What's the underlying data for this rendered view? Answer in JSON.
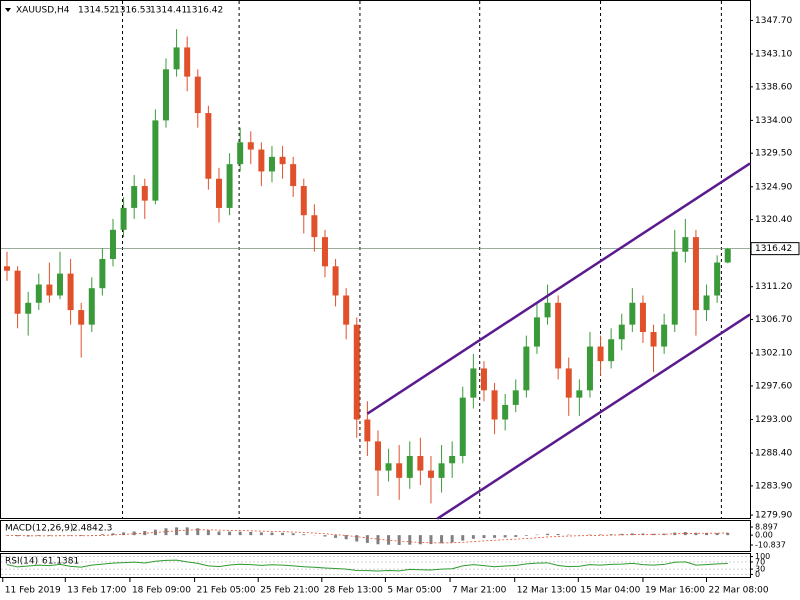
{
  "chart_data": [
    {
      "type": "candlestick",
      "title": "XAUUSD,H4",
      "open": [
        1314,
        1313.4,
        1307.5,
        1309,
        1311.5,
        1310,
        1313,
        1308,
        1306,
        1311,
        1315,
        1319,
        1322,
        1325,
        1323,
        1334,
        1341,
        1344,
        1340,
        1335,
        1326,
        1322,
        1328,
        1331,
        1330,
        1327,
        1329,
        1328,
        1325,
        1321,
        1318,
        1314,
        1310,
        1306,
        1293,
        1290,
        1286,
        1287,
        1285,
        1288,
        1286,
        1285,
        1287,
        1288,
        1296,
        1300,
        1297,
        1293,
        1295,
        1297,
        1303,
        1307,
        1309,
        1300,
        1296,
        1297,
        1303,
        1301,
        1304,
        1306,
        1309,
        1305,
        1303,
        1306,
        1316,
        1318,
        1308,
        1310,
        1314.52
      ],
      "high": [
        1316,
        1314,
        1310.5,
        1313,
        1314.5,
        1316,
        1315,
        1309,
        1312.5,
        1316.5,
        1320.5,
        1323.5,
        1326.5,
        1326,
        1335.5,
        1342.5,
        1346.5,
        1345.5,
        1341,
        1336,
        1327.5,
        1329.5,
        1333,
        1332.5,
        1331,
        1330.5,
        1330.5,
        1329,
        1326,
        1322.5,
        1319,
        1315,
        1311,
        1307,
        1295.5,
        1291.5,
        1289,
        1289.5,
        1290,
        1290.5,
        1288,
        1289.5,
        1290,
        1297.5,
        1302,
        1301,
        1298,
        1296.5,
        1298.5,
        1304.5,
        1309,
        1311.5,
        1310,
        1301.5,
        1298.5,
        1305,
        1304.5,
        1305.5,
        1307.5,
        1311,
        1310,
        1306,
        1307.5,
        1319,
        1320.5,
        1319,
        1311.5,
        1315.5,
        1316.53
      ],
      "low": [
        1312,
        1305.5,
        1304.5,
        1308,
        1309,
        1309.5,
        1306,
        1301.5,
        1305,
        1310,
        1314,
        1318,
        1320.5,
        1320.5,
        1322.5,
        1333,
        1340,
        1338,
        1333,
        1324.5,
        1320,
        1321,
        1327,
        1328,
        1325,
        1325.5,
        1326,
        1323.5,
        1318.5,
        1316,
        1312.5,
        1308.5,
        1304,
        1290.5,
        1288,
        1282.5,
        1284.5,
        1282,
        1283.5,
        1284,
        1281.5,
        1283,
        1285,
        1287,
        1294.5,
        1295.5,
        1291,
        1291.5,
        1294,
        1296,
        1302,
        1306,
        1298.5,
        1293.5,
        1293.5,
        1296,
        1299,
        1300,
        1302.5,
        1305,
        1303.5,
        1299.5,
        1302,
        1305,
        1314.5,
        1304.5,
        1306.5,
        1309,
        1314.41
      ],
      "close": [
        1313.4,
        1307.5,
        1309,
        1311.5,
        1310,
        1313,
        1308,
        1306,
        1311,
        1315,
        1319,
        1322,
        1325,
        1323,
        1334,
        1341,
        1344,
        1340,
        1335,
        1326,
        1322,
        1328,
        1331,
        1330,
        1327,
        1329,
        1328,
        1325,
        1321,
        1318,
        1314,
        1310,
        1306,
        1293,
        1290,
        1286,
        1287,
        1285,
        1288,
        1286,
        1285,
        1287,
        1288,
        1296,
        1300,
        1297,
        1293,
        1295,
        1297,
        1303,
        1307,
        1309,
        1300,
        1296,
        1297,
        1303,
        1301,
        1304,
        1306,
        1309,
        1305,
        1303,
        1306,
        1316,
        1318,
        1308,
        1310,
        1314.52,
        1316.42
      ],
      "up_color": "#3a9a3a",
      "down_color": "#e0502a",
      "xlim": [
        -0.66,
        70.1
      ],
      "ylim": [
        1279.5,
        1350.5
      ],
      "yticks": [
        {
          "value": 1279.9,
          "label": "1279.90"
        },
        {
          "value": 1283.9,
          "label": "1283.90"
        },
        {
          "value": 1288.4,
          "label": "1288.40"
        },
        {
          "value": 1293,
          "label": "1293.00"
        },
        {
          "value": 1297.6,
          "label": "1297.60"
        },
        {
          "value": 1302.1,
          "label": "1302.10"
        },
        {
          "value": 1306.7,
          "label": "1306.70"
        },
        {
          "value": 1311.2,
          "label": "1311.20"
        },
        {
          "value": 1320.4,
          "label": "1320.40"
        },
        {
          "value": 1324.9,
          "label": "1324.90"
        },
        {
          "value": 1329.5,
          "label": "1329.50"
        },
        {
          "value": 1334,
          "label": "1334.00"
        },
        {
          "value": 1338.6,
          "label": "1338.60"
        },
        {
          "value": 1343.1,
          "label": "1343.10"
        },
        {
          "value": 1347.7,
          "label": "1347.70"
        }
      ],
      "xticks": [
        {
          "value": -0.4,
          "label": "11 Feb 2019"
        },
        {
          "value": 5.5,
          "label": "13 Feb 17:00"
        },
        {
          "value": 11.6,
          "label": "18 Feb 09:00"
        },
        {
          "value": 17.7,
          "label": "21 Feb 05:00"
        },
        {
          "value": 23.7,
          "label": "25 Feb 21:00"
        },
        {
          "value": 29.7,
          "label": "28 Feb 13:00"
        },
        {
          "value": 35.7,
          "label": "5 Mar 05:00"
        },
        {
          "value": 41.8,
          "label": "7 Mar 21:00"
        },
        {
          "value": 47.9,
          "label": "12 Mar 13:00"
        },
        {
          "value": 53.9,
          "label": "15 Mar 04:00"
        },
        {
          "value": 60,
          "label": "19 Mar 16:00"
        },
        {
          "value": 66,
          "label": "22 Mar 08:00"
        }
      ],
      "separators": [
        10.9,
        21.9,
        33.3,
        44.6,
        56,
        67.4
      ],
      "last_price": 1316.42,
      "channel_color": "#5b1a8e",
      "channel": [
        {
          "x": [
            34,
            70.1
          ],
          "y": [
            1293.8,
            1328.1
          ]
        },
        {
          "x": [
            40.6,
            70.1
          ],
          "y": [
            1279.4,
            1307.4
          ]
        }
      ]
    },
    {
      "type": "macd",
      "title": "MACD(12,26,9)",
      "values": [
        -0.5,
        -1.2,
        -1.5,
        -1,
        -0.8,
        -0.3,
        -0.6,
        -1,
        -0.2,
        1,
        2,
        3,
        4,
        4.5,
        6,
        7.5,
        8.5,
        8.5,
        7.5,
        5.5,
        4,
        3.8,
        3.8,
        3.5,
        3,
        2.8,
        2.5,
        2,
        1,
        -0.2,
        -1.5,
        -3,
        -4.5,
        -7,
        -8.5,
        -10,
        -10.5,
        -10.8,
        -10.5,
        -10,
        -9.8,
        -9,
        -8,
        -6,
        -4,
        -3.2,
        -3,
        -2.5,
        -2,
        -0.8,
        0.5,
        1.5,
        1.3,
        0.5,
        0.2,
        0.6,
        0.7,
        1,
        1.4,
        1.9,
        1.8,
        1.4,
        1.6,
        2.8,
        3.4,
        2.6,
        2.4,
        2.4,
        2.484
      ],
      "signal": [
        -0.3,
        -0.5,
        -0.7,
        -0.8,
        -0.8,
        -0.7,
        -0.7,
        -0.7,
        -0.6,
        -0.3,
        0.2,
        0.8,
        1.5,
        2.1,
        2.9,
        3.8,
        4.7,
        5.5,
        5.9,
        5.8,
        5.5,
        5.2,
        5.0,
        4.7,
        4.4,
        4.1,
        3.8,
        3.4,
        2.9,
        2.3,
        1.5,
        0.6,
        -0.4,
        -1.7,
        -3,
        -4.4,
        -5.6,
        -6.6,
        -7.4,
        -8,
        -8.4,
        -8.5,
        -8.4,
        -7.9,
        -7.1,
        -6.3,
        -5.6,
        -5,
        -4.4,
        -3.7,
        -2.9,
        -2,
        -1.4,
        -1,
        -0.7,
        -0.4,
        -0.2,
        0,
        0.3,
        0.6,
        0.8,
        0.9,
        1,
        1.4,
        1.8,
        2,
        2.1,
        2.2,
        2.3
      ],
      "color": "#808080",
      "signal_color": "#e0502a",
      "ylim": [
        -17.4,
        16.6
      ],
      "yticks": [
        8.897,
        {
          "value": 0,
          "label": "0.00"
        },
        -10.837
      ]
    },
    {
      "type": "line",
      "title": "RSI(14)",
      "values": [
        55,
        42,
        47,
        52,
        49,
        56,
        45,
        41,
        52,
        58,
        63,
        66,
        69,
        64,
        74,
        79,
        80,
        70,
        62,
        48,
        44,
        53,
        57,
        55,
        51,
        54,
        52,
        48,
        43,
        40,
        36,
        33,
        30,
        22,
        21,
        19,
        22,
        20,
        28,
        26,
        25,
        30,
        32,
        48,
        55,
        49,
        43,
        47,
        50,
        59,
        63,
        65,
        50,
        44,
        46,
        55,
        52,
        56,
        58,
        62,
        55,
        52,
        56,
        68,
        70,
        52,
        55,
        59,
        61.1381
      ],
      "color": "#2f9a2f",
      "ylim": [
        -20,
        120
      ],
      "yticks": [
        100,
        70,
        30,
        0
      ]
    }
  ]
}
